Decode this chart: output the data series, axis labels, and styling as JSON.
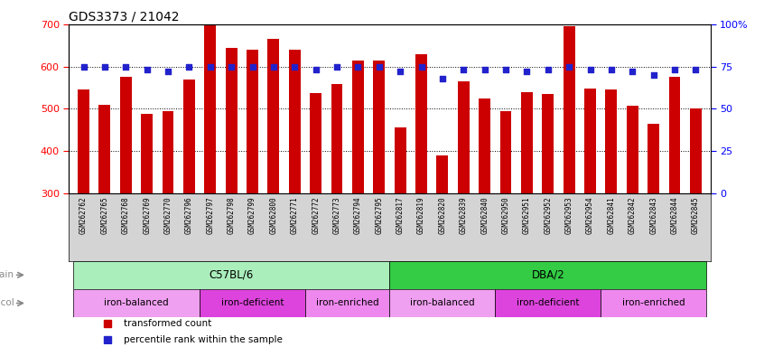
{
  "title": "GDS3373 / 21042",
  "samples": [
    "GSM262762",
    "GSM262765",
    "GSM262768",
    "GSM262769",
    "GSM262770",
    "GSM262796",
    "GSM262797",
    "GSM262798",
    "GSM262799",
    "GSM262800",
    "GSM262771",
    "GSM262772",
    "GSM262773",
    "GSM262794",
    "GSM262795",
    "GSM262817",
    "GSM262819",
    "GSM262820",
    "GSM262839",
    "GSM262840",
    "GSM262950",
    "GSM262951",
    "GSM262952",
    "GSM262953",
    "GSM262954",
    "GSM262841",
    "GSM262842",
    "GSM262843",
    "GSM262844",
    "GSM262845"
  ],
  "transformed_counts": [
    545,
    510,
    575,
    488,
    495,
    570,
    700,
    645,
    640,
    665,
    640,
    538,
    558,
    615,
    615,
    455,
    630,
    390,
    565,
    525,
    495,
    540,
    535,
    695,
    548,
    545,
    507,
    465,
    575,
    500
  ],
  "percentile_ranks": [
    75,
    75,
    75,
    73,
    72,
    75,
    75,
    75,
    75,
    75,
    75,
    73,
    75,
    75,
    75,
    72,
    75,
    68,
    73,
    73,
    73,
    72,
    73,
    75,
    73,
    73,
    72,
    70,
    73,
    73
  ],
  "ylim_left": [
    300,
    700
  ],
  "ylim_right": [
    0,
    100
  ],
  "bar_color": "#cc0000",
  "dot_color": "#2222cc",
  "strain_groups": [
    {
      "label": "C57BL/6",
      "start": 0,
      "end": 15,
      "color": "#aaeebb"
    },
    {
      "label": "DBA/2",
      "start": 15,
      "end": 30,
      "color": "#33cc44"
    }
  ],
  "protocol_groups": [
    {
      "label": "iron-balanced",
      "start": 0,
      "end": 6,
      "color": "#f0a0f0"
    },
    {
      "label": "iron-deficient",
      "start": 6,
      "end": 11,
      "color": "#dd44dd"
    },
    {
      "label": "iron-enriched",
      "start": 11,
      "end": 15,
      "color": "#ee88ee"
    },
    {
      "label": "iron-balanced",
      "start": 15,
      "end": 20,
      "color": "#f0a0f0"
    },
    {
      "label": "iron-deficient",
      "start": 20,
      "end": 25,
      "color": "#dd44dd"
    },
    {
      "label": "iron-enriched",
      "start": 25,
      "end": 30,
      "color": "#ee88ee"
    }
  ],
  "legend_items": [
    {
      "label": "transformed count",
      "color": "#cc0000"
    },
    {
      "label": "percentile rank within the sample",
      "color": "#2222cc"
    }
  ],
  "left_yticks": [
    300,
    400,
    500,
    600,
    700
  ],
  "right_yticks": [
    0,
    25,
    50,
    75,
    100
  ],
  "right_yticklabels": [
    "0",
    "25",
    "50",
    "75",
    "100%"
  ],
  "grid_lines": [
    400,
    500,
    600
  ],
  "xlabel_bg": "#cccccc",
  "strain_label_color": "#888888",
  "protocol_label_color": "#888888"
}
